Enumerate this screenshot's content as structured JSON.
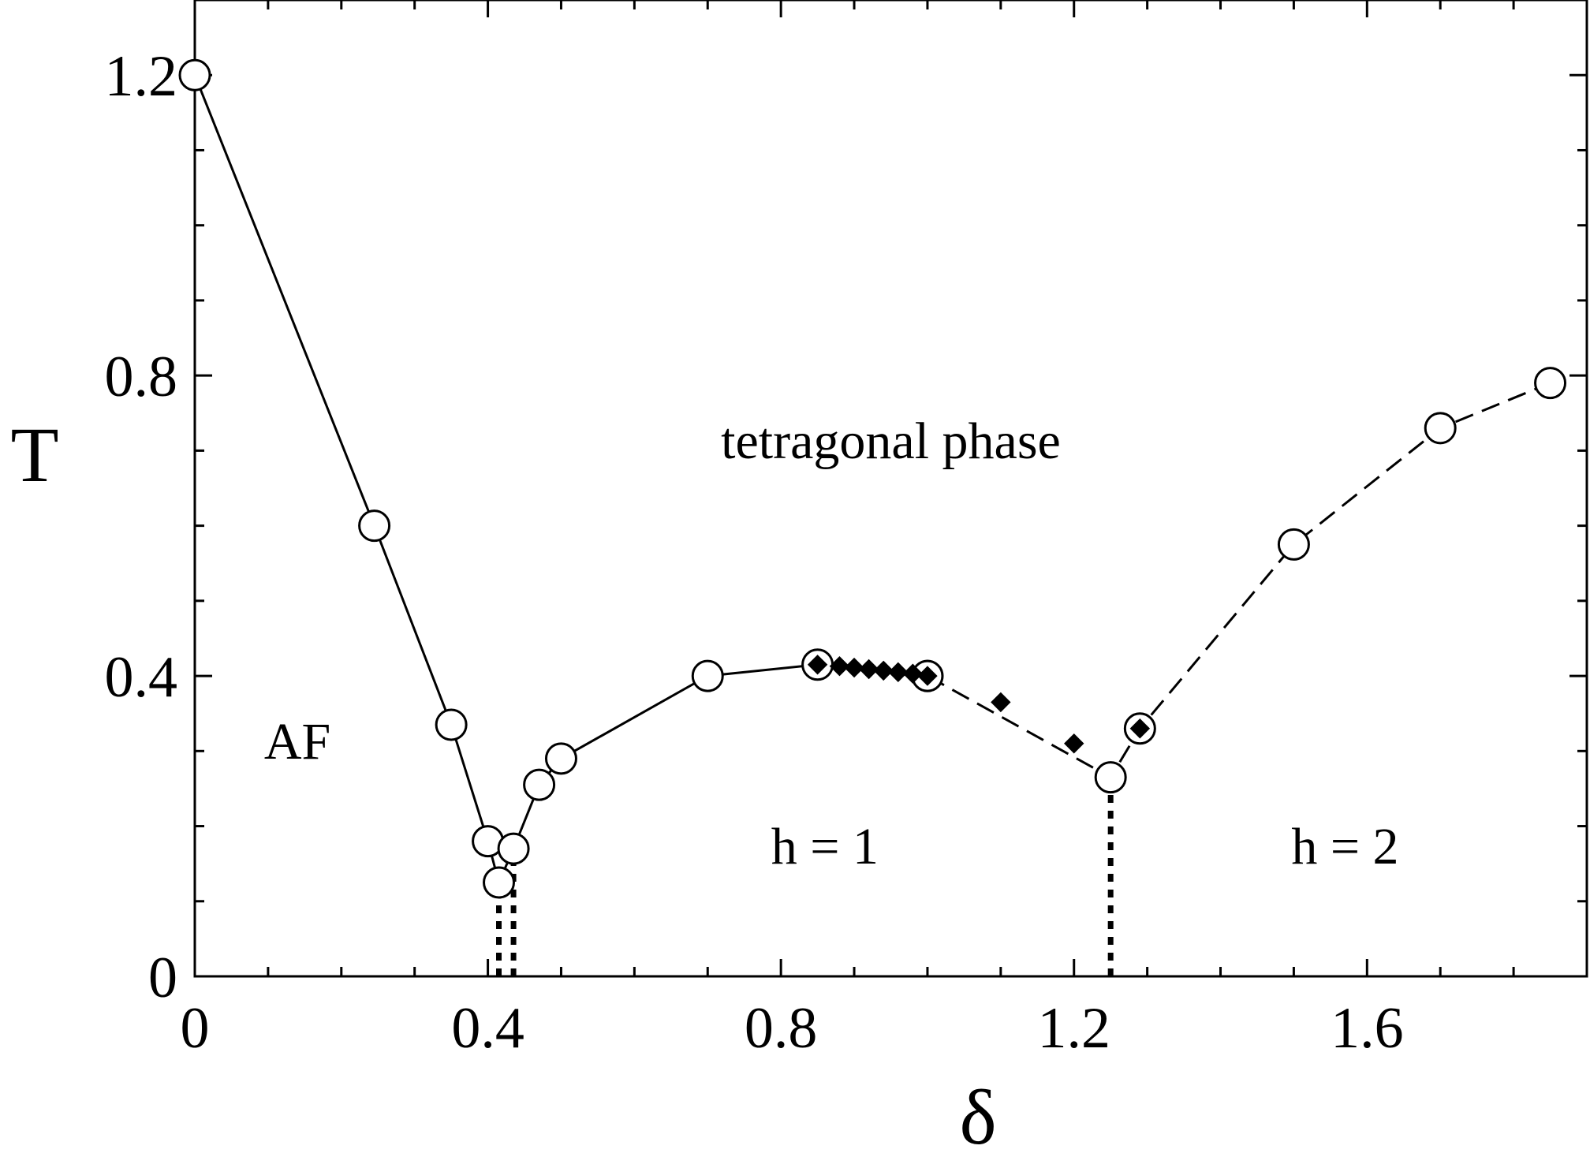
{
  "chart_data": {
    "type": "scatter",
    "title": "",
    "xlabel": "δ",
    "ylabel": "T",
    "xlim": [
      0,
      1.9
    ],
    "ylim": [
      0,
      1.3
    ],
    "x_ticks": [
      "0",
      "0.4",
      "0.8",
      "1.2",
      "1.6"
    ],
    "x_tick_values": [
      0,
      0.4,
      0.8,
      1.2,
      1.6
    ],
    "x_minor_tick_values": [
      0.1,
      0.2,
      0.3,
      0.5,
      0.6,
      0.7,
      0.9,
      1.0,
      1.1,
      1.3,
      1.4,
      1.5,
      1.7,
      1.8
    ],
    "y_ticks": [
      "0",
      "0.4",
      "0.8",
      "1.2"
    ],
    "y_tick_values": [
      0,
      0.4,
      0.8,
      1.2
    ],
    "y_minor_tick_values": [
      0.1,
      0.2,
      0.3,
      0.5,
      0.6,
      0.7,
      0.9,
      1.0,
      1.1
    ],
    "grid": false,
    "series": [
      {
        "marker": "open-circle",
        "line": "solid",
        "x": [
          0.0,
          0.245,
          0.35,
          0.4,
          0.415,
          0.435,
          0.47,
          0.5,
          0.7,
          0.85,
          1.0
        ],
        "y": [
          1.2,
          0.6,
          0.335,
          0.18,
          0.125,
          0.17,
          0.255,
          0.29,
          0.4,
          0.415,
          0.4
        ]
      },
      {
        "marker": "open-circle",
        "line": "dashed",
        "x": [
          1.0,
          1.25,
          1.29,
          1.5,
          1.7,
          1.85
        ],
        "y": [
          0.4,
          0.265,
          0.33,
          0.575,
          0.73,
          0.79
        ]
      },
      {
        "marker": "filled-diamond",
        "line": "none",
        "x": [
          0.85,
          0.88,
          0.9,
          0.92,
          0.94,
          0.96,
          0.98,
          1.0,
          1.1,
          1.2,
          1.29
        ],
        "y": [
          0.415,
          0.413,
          0.411,
          0.409,
          0.407,
          0.405,
          0.403,
          0.4,
          0.365,
          0.31,
          0.33
        ]
      }
    ],
    "boundaries": [
      {
        "style": "dotted",
        "x": 0.415,
        "y_from": 0,
        "y_to": 0.125
      },
      {
        "style": "dotted",
        "x": 0.435,
        "y_from": 0,
        "y_to": 0.17
      },
      {
        "style": "dotted",
        "x": 1.25,
        "y_from": 0,
        "y_to": 0.265
      }
    ],
    "annotations": [
      {
        "text": "tetragonal phase",
        "x": 0.95,
        "y": 0.69
      },
      {
        "text": "AF",
        "x": 0.14,
        "y": 0.29
      },
      {
        "text": "h = 1",
        "x": 0.86,
        "y": 0.15
      },
      {
        "text": "h = 2",
        "x": 1.57,
        "y": 0.15
      }
    ]
  }
}
